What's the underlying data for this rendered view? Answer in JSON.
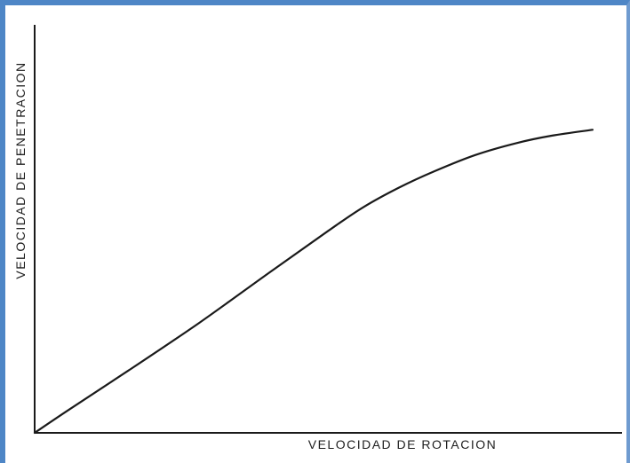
{
  "chart_data": {
    "type": "line",
    "title": "",
    "xlabel": "VELOCIDAD DE ROTACION",
    "ylabel": "VELOCIDAD DE PENETRACION",
    "xlim": [
      0,
      100
    ],
    "ylim": [
      0,
      100
    ],
    "grid": false,
    "legend": "none",
    "series": [
      {
        "x": [
          0,
          6,
          16,
          28,
          40,
          50,
          56,
          62,
          68,
          75,
          82,
          88,
          95
        ],
        "y": [
          0,
          8,
          21,
          37,
          54,
          68,
          76,
          82.5,
          88,
          93.5,
          97.5,
          100,
          102
        ]
      }
    ],
    "colors": {
      "line": "#1a1a1a",
      "axis": "#1a1a1a",
      "frame": "#4e86c6"
    }
  }
}
